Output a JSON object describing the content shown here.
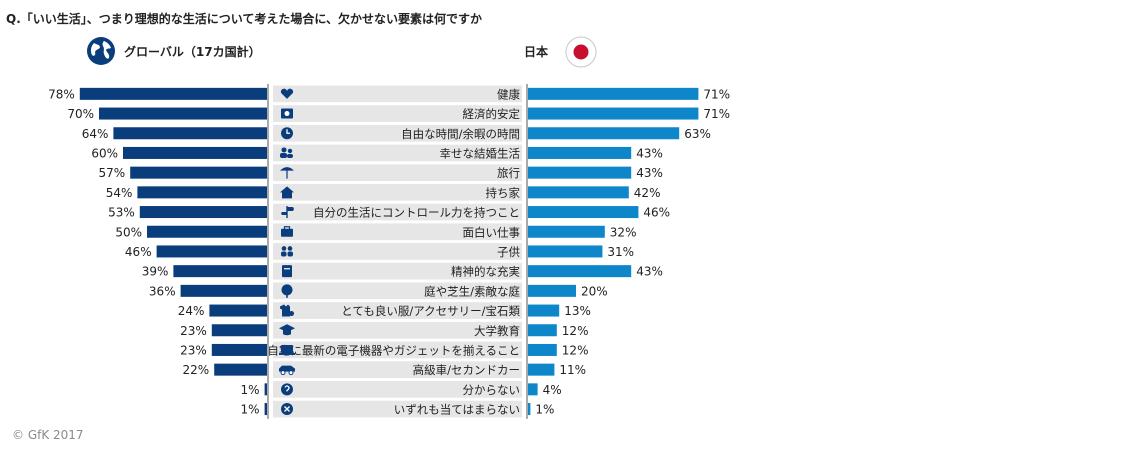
{
  "header": {
    "question": "Q.「いい生活」、つまり理想的な生活について考えた場合に、欠かせない要素は何ですか",
    "global_label": "グローバル（17カ国計）",
    "japan_label": "日本"
  },
  "footer": {
    "copyright": "© GfK 2017"
  },
  "colors": {
    "global_bar": "#0a3d7c",
    "japan_bar": "#0d87c9",
    "label_band": "#e6e6e6",
    "icon": "#0a3d7c",
    "flag_red": "#c8102e"
  },
  "chart_data": {
    "type": "bar",
    "orientation": "horizontal",
    "layout": "butterfly",
    "categories": [
      "健康",
      "経済的安定",
      "自由な時間/余暇の時間",
      "幸せな結婚生活",
      "旅行",
      "持ち家",
      "自分の生活にコントロール力を持つこと",
      "面白い仕事",
      "子供",
      "精神的な充実",
      "庭や芝生/素敵な庭",
      "とても良い服/アクセサリー/宝石類",
      "大学教育",
      "自宅に最新の電子機器やガジェットを揃えること",
      "高級車/セカンドカー",
      "分からない",
      "いずれも当てはまらない"
    ],
    "icons": [
      "heart-icon",
      "safe-icon",
      "clock-icon",
      "couple-icon",
      "beach-icon",
      "house-icon",
      "signpost-icon",
      "briefcase-icon",
      "children-icon",
      "book-icon",
      "tree-icon",
      "clothing-icon",
      "graduation-cap-icon",
      "laptop-icon",
      "car-icon",
      "question-icon",
      "cross-icon"
    ],
    "series": [
      {
        "name": "グローバル（17カ国計）",
        "values": [
          78,
          70,
          64,
          60,
          57,
          54,
          53,
          50,
          46,
          39,
          36,
          24,
          23,
          23,
          22,
          1,
          1
        ]
      },
      {
        "name": "日本",
        "values": [
          71,
          71,
          63,
          43,
          43,
          42,
          46,
          32,
          31,
          43,
          20,
          13,
          12,
          12,
          11,
          4,
          1
        ]
      }
    ],
    "value_suffix": "%",
    "xlim": [
      0,
      100
    ]
  }
}
